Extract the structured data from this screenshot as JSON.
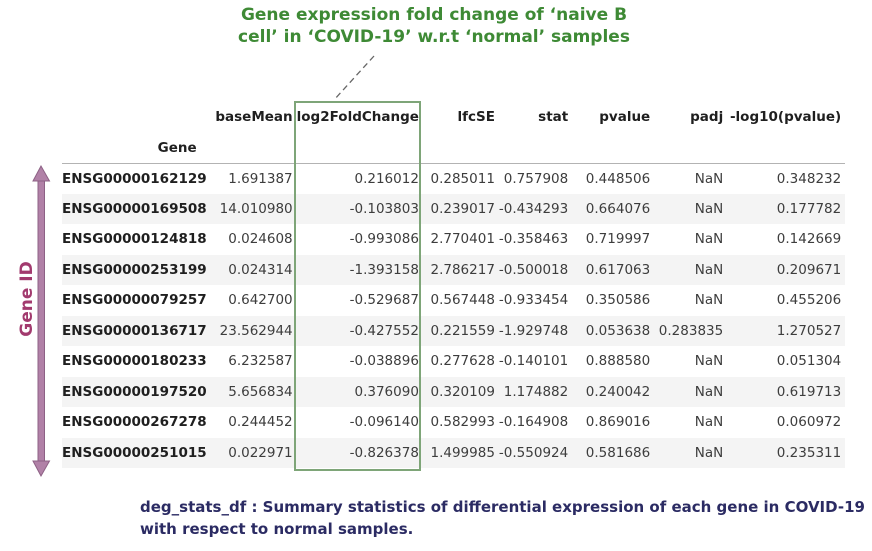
{
  "colors": {
    "annotation_green": "#3e8a35",
    "highlight_box_green": "#7ea578",
    "arrow_purple": "#b181a7",
    "gene_id_label_magenta": "#a23a6e",
    "caption_navy": "#2b2b63",
    "row_stripe": "#f4f4f4",
    "header_rule_gray": "#b3b3b3"
  },
  "annotation": {
    "line1": "Gene expression fold change of ‘naive B",
    "line2": "cell’ in ‘COVID-19’ w.r.t ‘normal’ samples"
  },
  "gene_axis_label": "Gene ID",
  "caption": {
    "line1": "deg_stats_df : Summary statistics of differential expression of each gene in COVID-19",
    "line2": "with respect to normal samples."
  },
  "chart_data": {
    "type": "table",
    "index_label": "Gene",
    "highlighted_column": "log2FoldChange",
    "columns": [
      "baseMean",
      "log2FoldChange",
      "lfcSE",
      "stat",
      "pvalue",
      "padj",
      "-log10(pvalue)"
    ],
    "rows": [
      {
        "gene": "ENSG00000162129",
        "values": [
          "1.691387",
          "0.216012",
          "0.285011",
          "0.757908",
          "0.448506",
          "NaN",
          "0.348232"
        ]
      },
      {
        "gene": "ENSG00000169508",
        "values": [
          "14.010980",
          "-0.103803",
          "0.239017",
          "-0.434293",
          "0.664076",
          "NaN",
          "0.177782"
        ]
      },
      {
        "gene": "ENSG00000124818",
        "values": [
          "0.024608",
          "-0.993086",
          "2.770401",
          "-0.358463",
          "0.719997",
          "NaN",
          "0.142669"
        ]
      },
      {
        "gene": "ENSG00000253199",
        "values": [
          "0.024314",
          "-1.393158",
          "2.786217",
          "-0.500018",
          "0.617063",
          "NaN",
          "0.209671"
        ]
      },
      {
        "gene": "ENSG00000079257",
        "values": [
          "0.642700",
          "-0.529687",
          "0.567448",
          "-0.933454",
          "0.350586",
          "NaN",
          "0.455206"
        ]
      },
      {
        "gene": "ENSG00000136717",
        "values": [
          "23.562944",
          "-0.427552",
          "0.221559",
          "-1.929748",
          "0.053638",
          "0.283835",
          "1.270527"
        ]
      },
      {
        "gene": "ENSG00000180233",
        "values": [
          "6.232587",
          "-0.038896",
          "0.277628",
          "-0.140101",
          "0.888580",
          "NaN",
          "0.051304"
        ]
      },
      {
        "gene": "ENSG00000197520",
        "values": [
          "5.656834",
          "0.376090",
          "0.320109",
          "1.174882",
          "0.240042",
          "NaN",
          "0.619713"
        ]
      },
      {
        "gene": "ENSG00000267278",
        "values": [
          "0.244452",
          "-0.096140",
          "0.582993",
          "-0.164908",
          "0.869016",
          "NaN",
          "0.060972"
        ]
      },
      {
        "gene": "ENSG00000251015",
        "values": [
          "0.022971",
          "-0.826378",
          "1.499985",
          "-0.550924",
          "0.581686",
          "NaN",
          "0.235311"
        ]
      }
    ]
  }
}
